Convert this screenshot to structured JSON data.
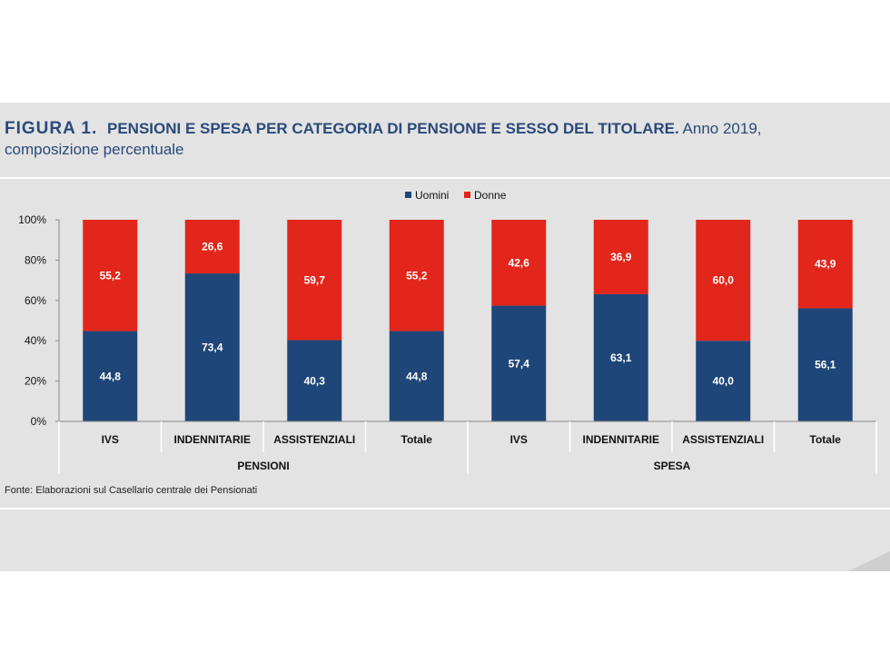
{
  "title": {
    "figure": "FIGURA 1.",
    "main": "PENSIONI E SPESA PER CATEGORIA DI PENSIONE E SESSO DEL TITOLARE.",
    "rest": "Anno 2019,",
    "sub": "composizione percentuale"
  },
  "source": "Fonte: Elaborazioni sul Casellario centrale dei Pensionati",
  "chart_data": {
    "type": "bar",
    "stacked": true,
    "categories": [
      "IVS",
      "INDENNITARIE",
      "ASSISTENZIALI",
      "Totale",
      "IVS",
      "INDENNITARIE",
      "ASSISTENZIALI",
      "Totale"
    ],
    "groups": [
      {
        "name": "PENSIONI",
        "categories": [
          "IVS",
          "INDENNITARIE",
          "ASSISTENZIALI",
          "Totale"
        ]
      },
      {
        "name": "SPESA",
        "categories": [
          "IVS",
          "INDENNITARIE",
          "ASSISTENZIALI",
          "Totale"
        ]
      }
    ],
    "series": [
      {
        "name": "Uomini",
        "color": "#1f4678",
        "values": [
          44.8,
          73.4,
          40.3,
          44.8,
          57.4,
          63.1,
          40.0,
          56.1
        ],
        "labels": [
          "44,8",
          "73,4",
          "40,3",
          "44,8",
          "57,4",
          "63,1",
          "40,0",
          "56,1"
        ]
      },
      {
        "name": "Donne",
        "color": "#e2261b",
        "values": [
          55.2,
          26.6,
          59.7,
          55.2,
          42.6,
          36.9,
          60.0,
          43.9
        ],
        "labels": [
          "55,2",
          "26,6",
          "59,7",
          "55,2",
          "42,6",
          "36,9",
          "60,0",
          "43,9"
        ]
      }
    ],
    "yticks": [
      "0%",
      "20%",
      "40%",
      "60%",
      "80%",
      "100%"
    ],
    "ylim": [
      0,
      100
    ],
    "legend": "top-center",
    "grid": false
  }
}
